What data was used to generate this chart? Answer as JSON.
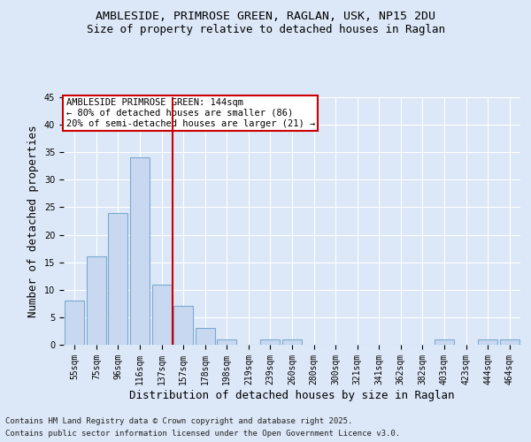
{
  "title1": "AMBLESIDE, PRIMROSE GREEN, RAGLAN, USK, NP15 2DU",
  "title2": "Size of property relative to detached houses in Raglan",
  "xlabel": "Distribution of detached houses by size in Raglan",
  "ylabel": "Number of detached properties",
  "categories": [
    "55sqm",
    "75sqm",
    "96sqm",
    "116sqm",
    "137sqm",
    "157sqm",
    "178sqm",
    "198sqm",
    "219sqm",
    "239sqm",
    "260sqm",
    "280sqm",
    "300sqm",
    "321sqm",
    "341sqm",
    "362sqm",
    "382sqm",
    "403sqm",
    "423sqm",
    "444sqm",
    "464sqm"
  ],
  "values": [
    8,
    16,
    24,
    34,
    11,
    7,
    3,
    1,
    0,
    1,
    1,
    0,
    0,
    0,
    0,
    0,
    0,
    1,
    0,
    1,
    1
  ],
  "bar_color": "#c8d8f0",
  "bar_edge_color": "#7aaad0",
  "background_color": "#dce8f8",
  "vline_x": 4.5,
  "vline_color": "#cc0000",
  "annotation_title": "AMBLESIDE PRIMROSE GREEN: 144sqm",
  "annotation_line1": "← 80% of detached houses are smaller (86)",
  "annotation_line2": "20% of semi-detached houses are larger (21) →",
  "annotation_box_color": "#ffffff",
  "annotation_box_edge": "#cc0000",
  "ylim": [
    0,
    45
  ],
  "yticks": [
    0,
    5,
    10,
    15,
    20,
    25,
    30,
    35,
    40,
    45
  ],
  "footer1": "Contains HM Land Registry data © Crown copyright and database right 2025.",
  "footer2": "Contains public sector information licensed under the Open Government Licence v3.0.",
  "title1_fontsize": 9.5,
  "title2_fontsize": 9,
  "axis_label_fontsize": 9,
  "tick_fontsize": 7,
  "annotation_fontsize": 7.5,
  "footer_fontsize": 6.5
}
